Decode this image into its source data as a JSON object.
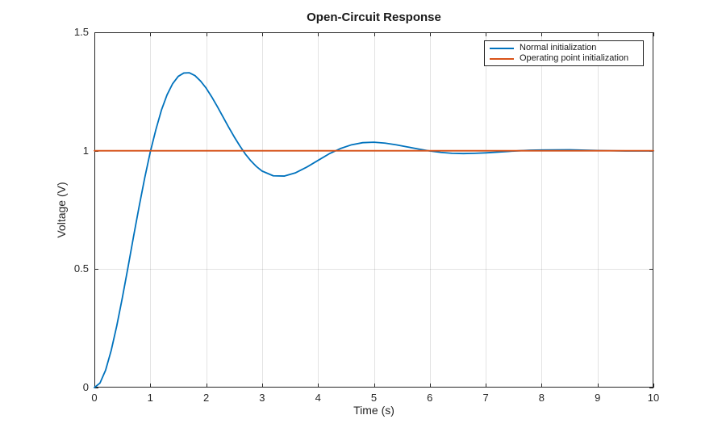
{
  "figure": {
    "background": "#ffffff"
  },
  "chart_data": {
    "type": "line",
    "title": "Open-Circuit Response",
    "xlabel": "Time (s)",
    "ylabel": "Voltage (V)",
    "xlim": [
      0,
      10
    ],
    "ylim": [
      0,
      1.5
    ],
    "xticks": [
      0,
      1,
      2,
      3,
      4,
      5,
      6,
      7,
      8,
      9,
      10
    ],
    "xtick_labels": [
      "0",
      "1",
      "2",
      "3",
      "4",
      "5",
      "6",
      "7",
      "8",
      "9",
      "10"
    ],
    "yticks": [
      0,
      0.5,
      1,
      1.5
    ],
    "ytick_labels": [
      "0",
      "0.5",
      "1",
      "1.5"
    ],
    "grid": true,
    "legend_position": "top-right",
    "axis_color": "#262626",
    "grid_color": "rgba(38,38,38,0.13)",
    "series": [
      {
        "name": "Normal initialization",
        "color": "#0072BD",
        "x": [
          0,
          0.1,
          0.2,
          0.3,
          0.4,
          0.5,
          0.6,
          0.7,
          0.8,
          0.9,
          1.0,
          1.1,
          1.2,
          1.3,
          1.4,
          1.5,
          1.6,
          1.7,
          1.8,
          1.9,
          2.0,
          2.1,
          2.2,
          2.3,
          2.4,
          2.5,
          2.6,
          2.7,
          2.8,
          2.9,
          3.0,
          3.2,
          3.4,
          3.6,
          3.8,
          4.0,
          4.2,
          4.4,
          4.6,
          4.8,
          5.0,
          5.2,
          5.4,
          5.6,
          5.8,
          6.0,
          6.2,
          6.4,
          6.6,
          6.8,
          7.0,
          7.2,
          7.4,
          7.6,
          7.8,
          8.0,
          8.5,
          9.0,
          9.5,
          10
        ],
        "y": [
          0,
          0.019,
          0.073,
          0.156,
          0.26,
          0.379,
          0.506,
          0.637,
          0.764,
          0.885,
          0.995,
          1.089,
          1.172,
          1.236,
          1.283,
          1.314,
          1.328,
          1.329,
          1.317,
          1.294,
          1.264,
          1.227,
          1.186,
          1.143,
          1.1,
          1.059,
          1.021,
          0.986,
          0.957,
          0.933,
          0.914,
          0.894,
          0.893,
          0.907,
          0.931,
          0.959,
          0.987,
          1.009,
          1.025,
          1.034,
          1.036,
          1.032,
          1.025,
          1.016,
          1.007,
          0.999,
          0.993,
          0.989,
          0.988,
          0.989,
          0.991,
          0.994,
          0.997,
          1.0,
          1.002,
          1.003,
          1.004,
          1.001,
          0.999,
          0.999
        ]
      },
      {
        "name": "Operating point initialization",
        "color": "#D95319",
        "x": [
          0,
          10
        ],
        "y": [
          1,
          1
        ]
      }
    ]
  }
}
